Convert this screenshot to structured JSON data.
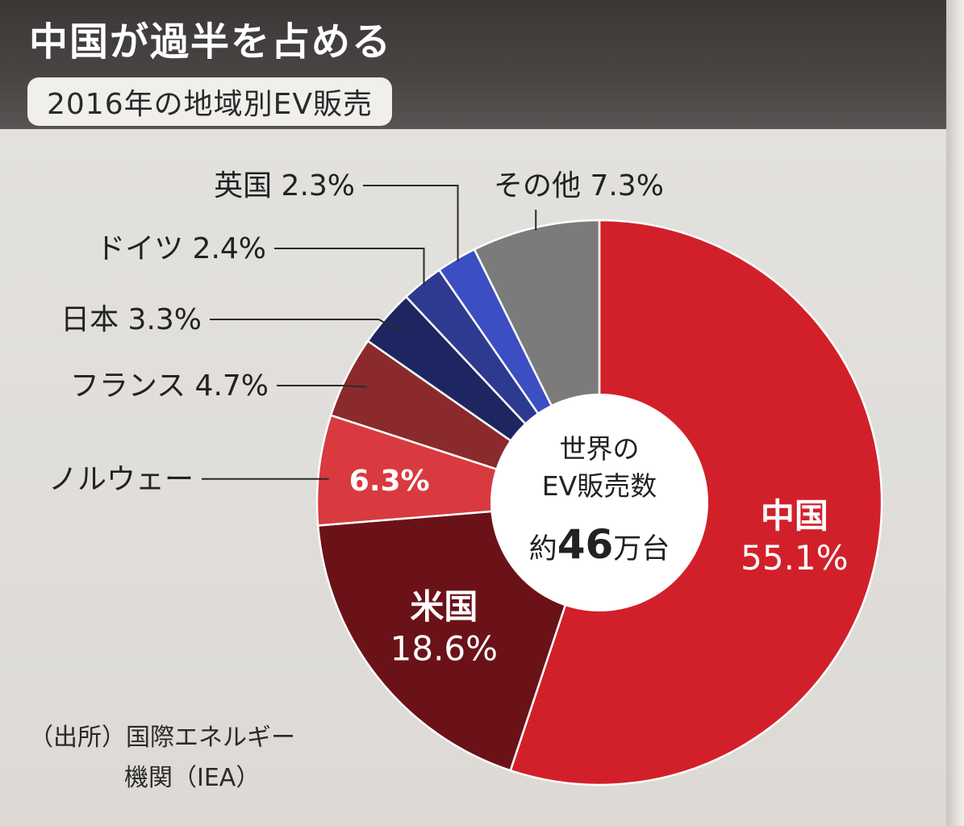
{
  "header": {
    "title": "中国が過半を占める",
    "subtitle": "2016年の地域別EV販売"
  },
  "center": {
    "line1": "世界の",
    "line2": "EV販売数",
    "prefix": "約",
    "value": "46",
    "suffix": "万台"
  },
  "source": {
    "line1": "（出所）国際エネルギー",
    "line2": "機関（IEA）"
  },
  "chart_data": {
    "type": "pie",
    "donut": true,
    "start": "12 o'clock",
    "direction": "clockwise",
    "legend": "none (labels beside slices)",
    "slices": [
      {
        "name": "中国",
        "value": 55.1,
        "label": "55.1%",
        "color": "#d2202a",
        "label_color": "#ffffff",
        "label_position": "inside"
      },
      {
        "name": "米国",
        "value": 18.6,
        "label": "18.6%",
        "color": "#6b1218",
        "label_color": "#ffffff",
        "label_position": "inside"
      },
      {
        "name": "ノルウェー",
        "value": 6.3,
        "label": "6.3%",
        "color": "#d83a3f",
        "label_color": "#ffffff",
        "label_position": "inside-with-leader"
      },
      {
        "name": "フランス",
        "value": 4.7,
        "label": "4.7%",
        "color": "#8a2a2c",
        "label_color": "#222222",
        "label_position": "outside"
      },
      {
        "name": "日本",
        "value": 3.3,
        "label": "3.3%",
        "color": "#1d2660",
        "label_color": "#222222",
        "label_position": "outside"
      },
      {
        "name": "ドイツ",
        "value": 2.4,
        "label": "2.4%",
        "color": "#2e3a8f",
        "label_color": "#222222",
        "label_position": "outside"
      },
      {
        "name": "英国",
        "value": 2.3,
        "label": "2.3%",
        "color": "#3b4fc2",
        "label_color": "#222222",
        "label_position": "outside"
      },
      {
        "name": "その他",
        "value": 7.3,
        "label": "7.3%",
        "color": "#7b7b7b",
        "label_color": "#222222",
        "label_position": "outside"
      }
    ]
  }
}
